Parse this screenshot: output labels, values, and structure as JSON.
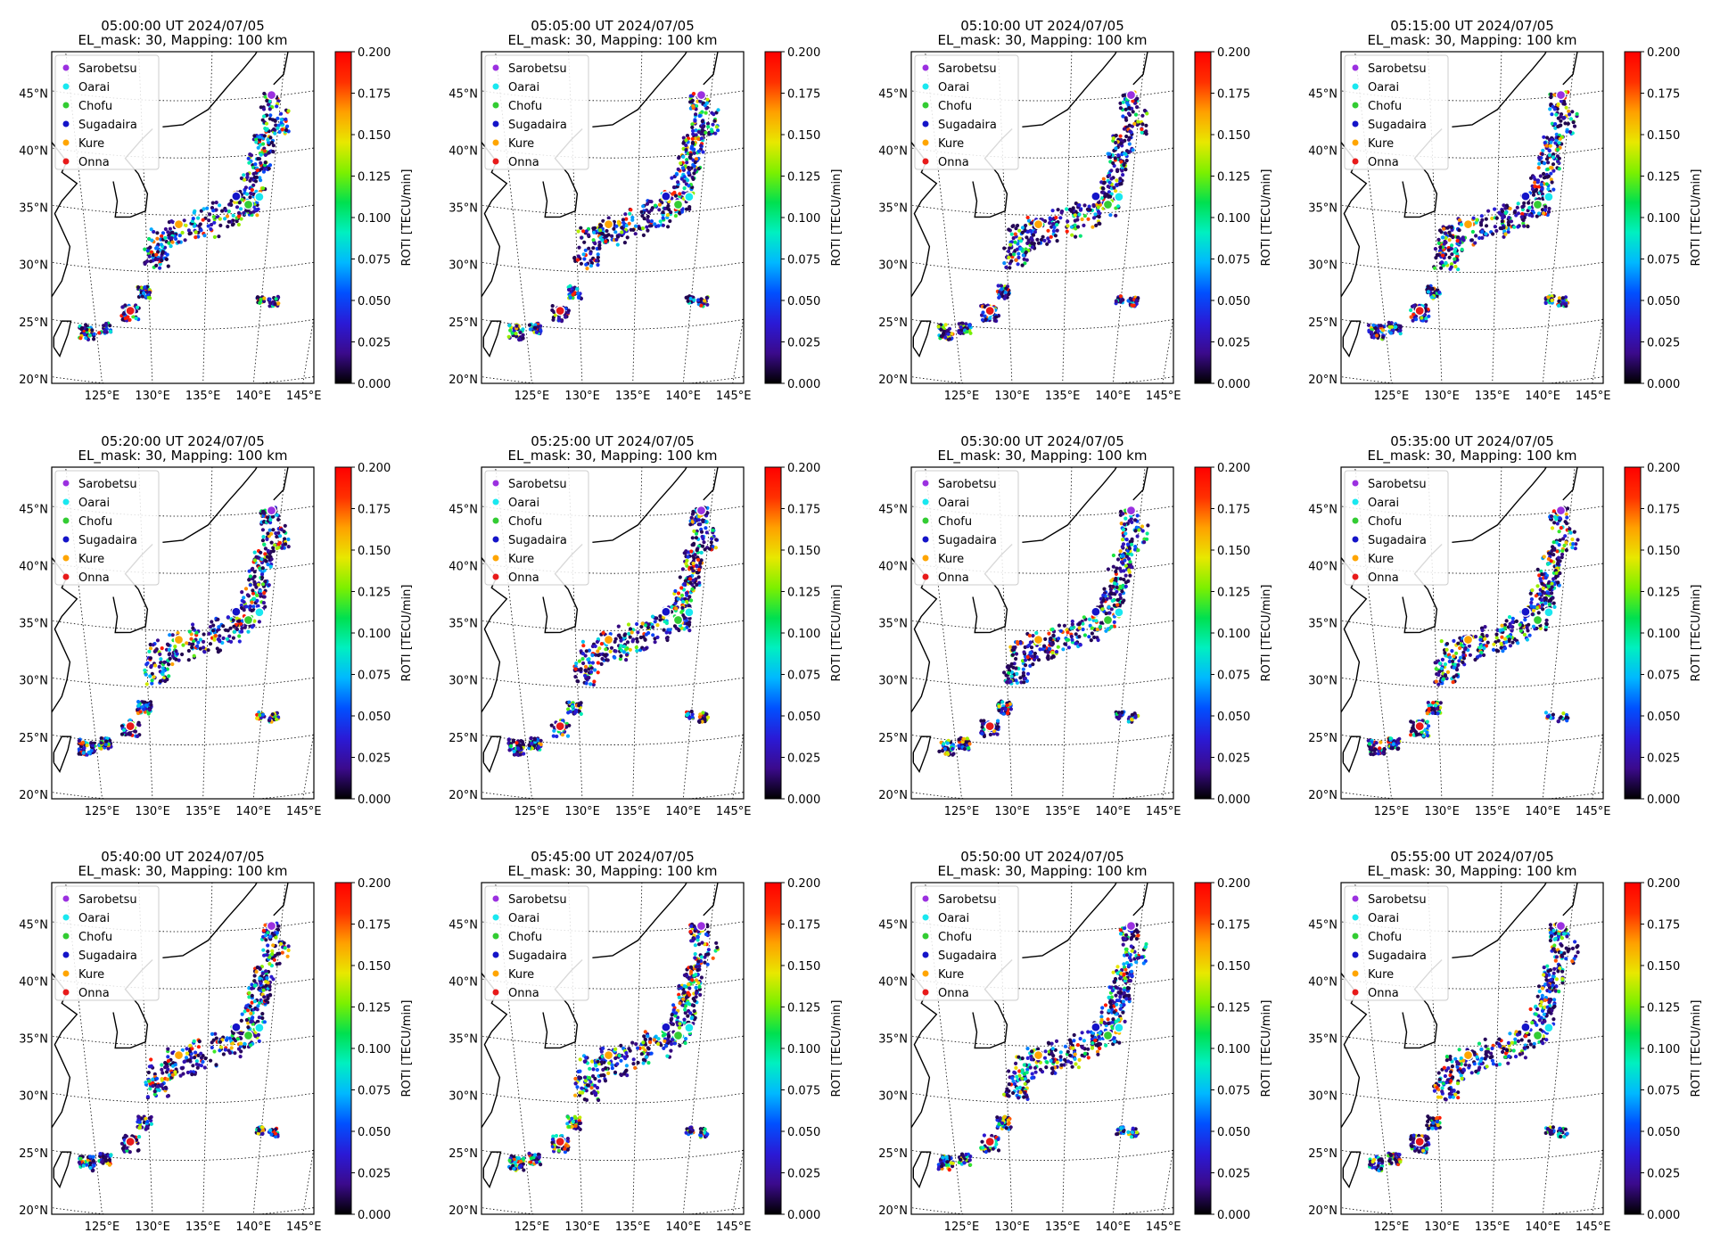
{
  "chart_data": {
    "type": "scatter",
    "grid": "dotted",
    "map_projection": "Lambert conformal",
    "lon_ticks": [
      "125°E",
      "130°E",
      "135°E",
      "140°E",
      "145°E"
    ],
    "lat_ticks": [
      "20°N",
      "25°N",
      "30°N",
      "35°N",
      "40°N",
      "45°N"
    ],
    "colorbar": {
      "label": "ROTI [TECU/min]",
      "ticks": [
        "0.000",
        "0.025",
        "0.050",
        "0.075",
        "0.100",
        "0.125",
        "0.150",
        "0.175",
        "0.200"
      ],
      "range": [
        0,
        0.2
      ],
      "colormap": [
        "#000000",
        "#3b0a8c",
        "#2a1ad6",
        "#0050ff",
        "#00b8ff",
        "#00f0c0",
        "#00e050",
        "#7cf000",
        "#e8e800",
        "#ffa000",
        "#ff3000",
        "#ff0000"
      ]
    },
    "legend_placement": "upper-left",
    "stations": [
      {
        "name": "Sarobetsu",
        "color": "#9b30e0",
        "lon": 141.8,
        "lat": 45.1
      },
      {
        "name": "Oarai",
        "color": "#19e8f0",
        "lon": 140.6,
        "lat": 36.3
      },
      {
        "name": "Chofu",
        "color": "#33cc33",
        "lon": 139.5,
        "lat": 35.7
      },
      {
        "name": "Sugadaira",
        "color": "#1414c8",
        "lon": 138.3,
        "lat": 36.5
      },
      {
        "name": "Kure",
        "color": "#ffa500",
        "lon": 132.6,
        "lat": 34.2
      },
      {
        "name": "Onna",
        "color": "#e81a1a",
        "lon": 127.8,
        "lat": 26.5
      }
    ],
    "panels": [
      {
        "title1": "05:00:00 UT 2024/07/05",
        "title2": "EL_mask: 30, Mapping: 100 km"
      },
      {
        "title1": "05:05:00 UT 2024/07/05",
        "title2": "EL_mask: 30, Mapping: 100 km"
      },
      {
        "title1": "05:10:00 UT 2024/07/05",
        "title2": "EL_mask: 30, Mapping: 100 km"
      },
      {
        "title1": "05:15:00 UT 2024/07/05",
        "title2": "EL_mask: 30, Mapping: 100 km"
      },
      {
        "title1": "05:20:00 UT 2024/07/05",
        "title2": "EL_mask: 30, Mapping: 100 km"
      },
      {
        "title1": "05:25:00 UT 2024/07/05",
        "title2": "EL_mask: 30, Mapping: 100 km"
      },
      {
        "title1": "05:30:00 UT 2024/07/05",
        "title2": "EL_mask: 30, Mapping: 100 km"
      },
      {
        "title1": "05:35:00 UT 2024/07/05",
        "title2": "EL_mask: 30, Mapping: 100 km"
      },
      {
        "title1": "05:40:00 UT 2024/07/05",
        "title2": "EL_mask: 30, Mapping: 100 km"
      },
      {
        "title1": "05:45:00 UT 2024/07/05",
        "title2": "EL_mask: 30, Mapping: 100 km"
      },
      {
        "title1": "05:50:00 UT 2024/07/05",
        "title2": "EL_mask: 30, Mapping: 100 km"
      },
      {
        "title1": "05:55:00 UT 2024/07/05",
        "title2": "EL_mask: 30, Mapping: 100 km"
      }
    ]
  }
}
